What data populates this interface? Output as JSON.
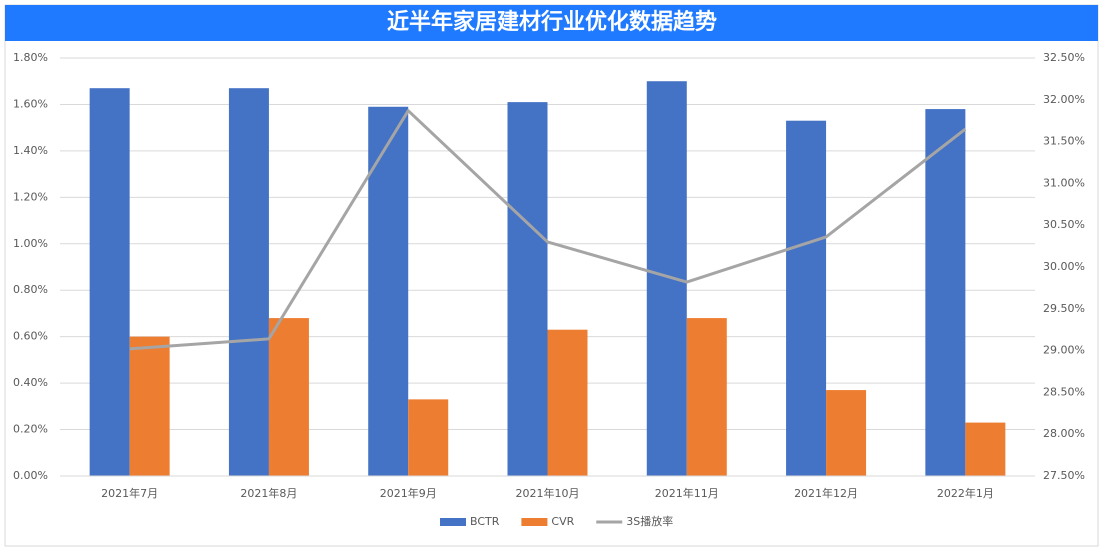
{
  "chart_data": {
    "type": "bar",
    "title": "近半年家居建材行业优化数据趋势",
    "categories": [
      "2021年7月",
      "2021年8月",
      "2021年9月",
      "2021年10月",
      "2021年11月",
      "2021年12月",
      "2022年1月"
    ],
    "series": [
      {
        "name": "BCTR",
        "color": "#4472c4",
        "values": [
          1.67,
          1.67,
          1.59,
          1.61,
          1.7,
          1.53,
          1.58
        ]
      },
      {
        "name": "CVR",
        "color": "#ed7d31",
        "values": [
          0.6,
          0.68,
          0.33,
          0.63,
          0.68,
          0.37,
          0.23
        ]
      },
      {
        "name": "3S播放率",
        "color": "#a5a5a5",
        "type": "line",
        "axis": "y2",
        "values": [
          29.02,
          29.14,
          31.87,
          30.3,
          29.82,
          30.36,
          31.65
        ]
      }
    ],
    "ylim": [
      0,
      1.8
    ],
    "yticks": [
      {
        "value": 0,
        "label": "0.00%"
      },
      {
        "value": 0.2,
        "label": "0.20%"
      },
      {
        "value": 0.4,
        "label": "0.40%"
      },
      {
        "value": 0.6,
        "label": "0.60%"
      },
      {
        "value": 0.8,
        "label": "0.80%"
      },
      {
        "value": 1.0,
        "label": "1.00%"
      },
      {
        "value": 1.2,
        "label": "1.20%"
      },
      {
        "value": 1.4,
        "label": "1.40%"
      },
      {
        "value": 1.6,
        "label": "1.60%"
      },
      {
        "value": 1.8,
        "label": "1.80%"
      }
    ],
    "y2lim": [
      27.5,
      32.5
    ],
    "y2ticks": [
      {
        "value": 27.5,
        "label": "27.50%"
      },
      {
        "value": 28,
        "label": "28.00%"
      },
      {
        "value": 28.5,
        "label": "28.50%"
      },
      {
        "value": 29,
        "label": "29.00%"
      },
      {
        "value": 29.5,
        "label": "29.50%"
      },
      {
        "value": 30,
        "label": "30.00%"
      },
      {
        "value": 30.5,
        "label": "30.50%"
      },
      {
        "value": 31,
        "label": "31.00%"
      },
      {
        "value": 31.5,
        "label": "31.50%"
      },
      {
        "value": 32,
        "label": "32.00%"
      },
      {
        "value": 32.5,
        "label": "32.50%"
      }
    ],
    "grid": true,
    "legend": "bottom"
  }
}
